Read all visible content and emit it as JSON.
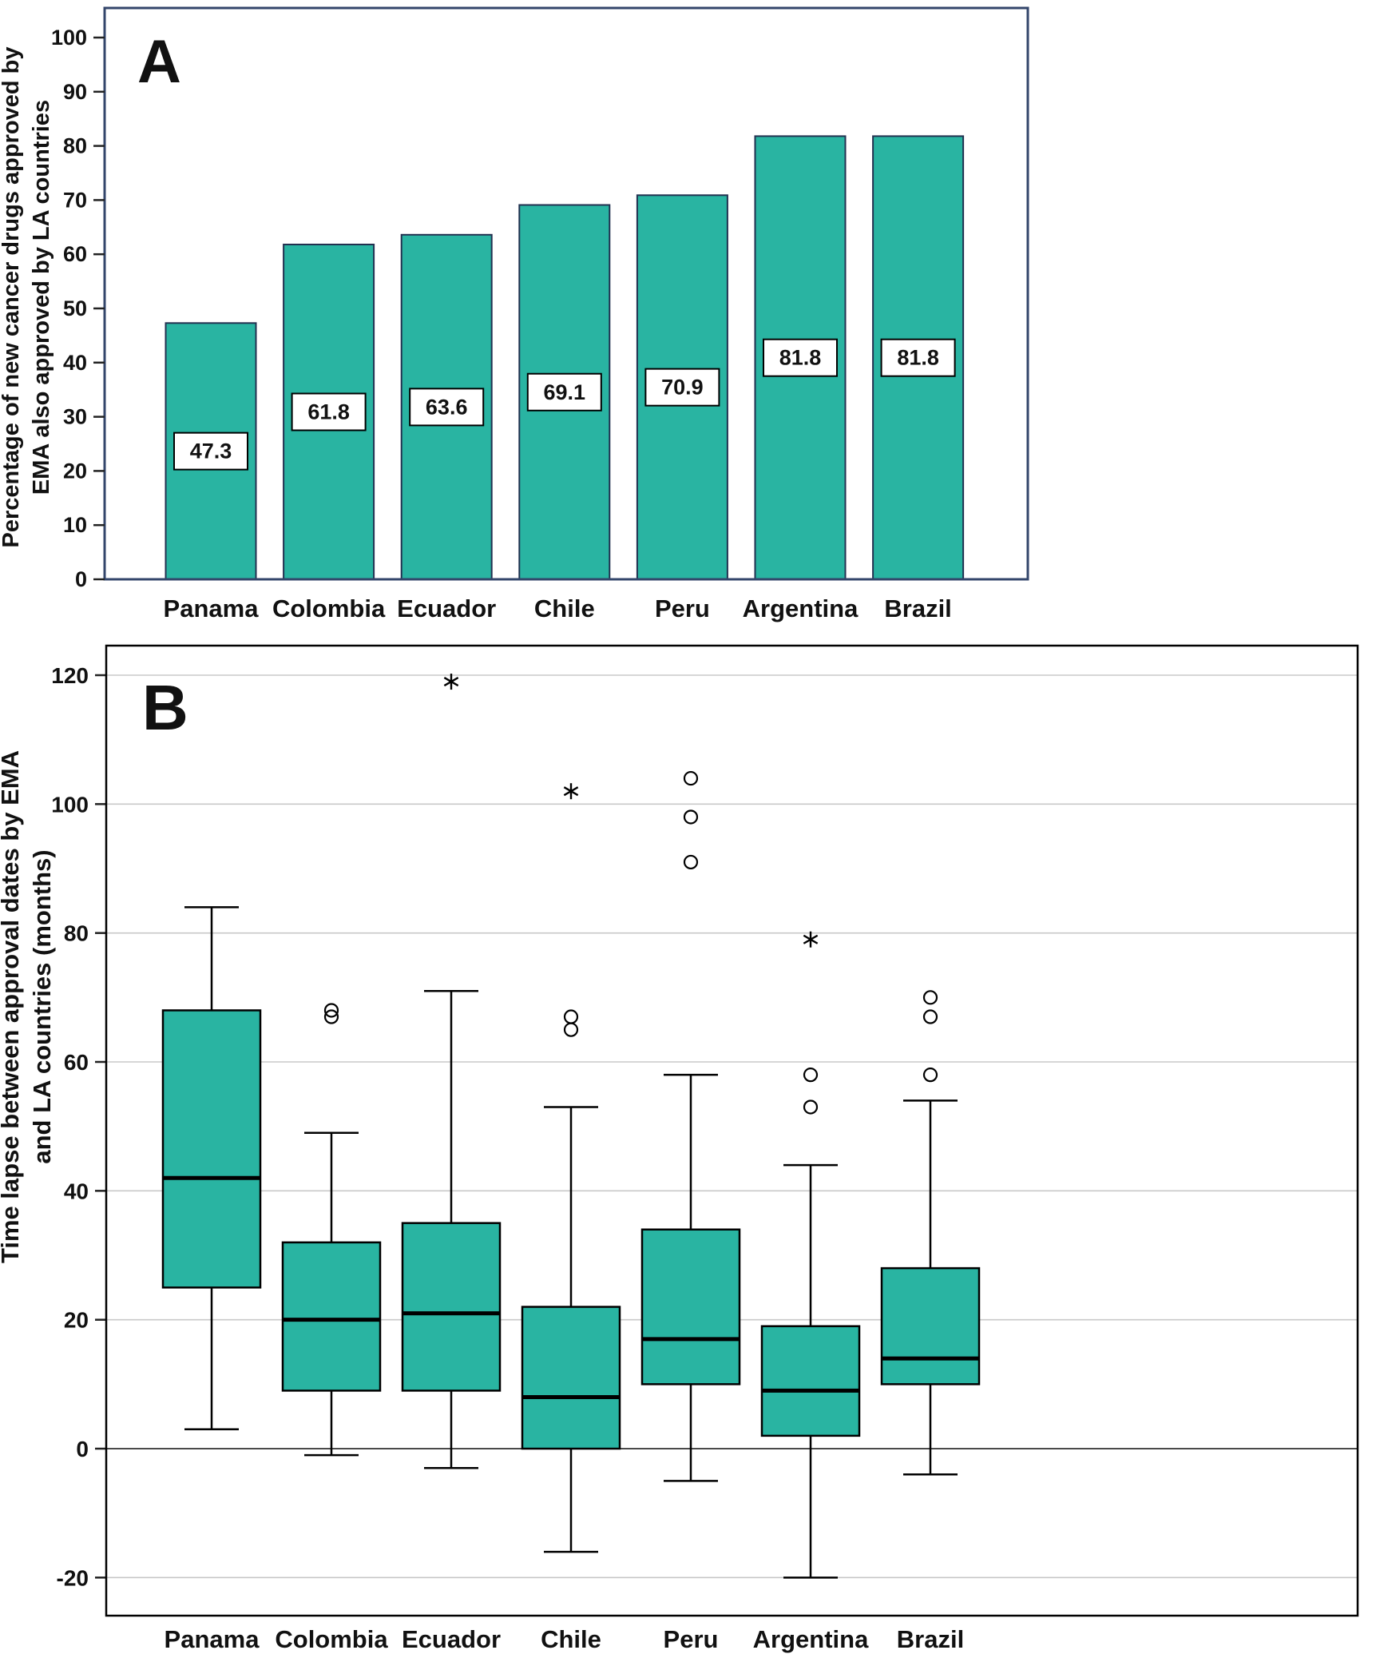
{
  "panels": {
    "a": {
      "letter": "A",
      "ylabel_line1": "Percentage of new cancer drugs approved by",
      "ylabel_line2": "EMA also approved by LA countries"
    },
    "b": {
      "letter": "B",
      "ylabel_line1": "Time lapse between approval dates by EMA",
      "ylabel_line2": "and LA countries (months)"
    }
  },
  "chart_data": [
    {
      "type": "bar",
      "panel": "A",
      "title": "",
      "ylabel": "Percentage of new cancer drugs approved by EMA also approved by LA countries",
      "xlabel": "",
      "categories": [
        "Panama",
        "Colombia",
        "Ecuador",
        "Chile",
        "Peru",
        "Argentina",
        "Brazil"
      ],
      "values": [
        47.3,
        61.8,
        63.6,
        69.1,
        70.9,
        81.8,
        81.8
      ],
      "value_labels": [
        "47.3",
        "61.8",
        "63.6",
        "69.1",
        "70.9",
        "81.8",
        "81.8"
      ],
      "ylim": [
        0,
        100
      ],
      "yticks": [
        0,
        10,
        20,
        30,
        40,
        50,
        60,
        70,
        80,
        90,
        100
      ],
      "grid": false,
      "legend": "none",
      "bar_color": "#29b4a2",
      "bar_border_color": "#223150",
      "frame_color": "#33466b",
      "value_label_box_fill": "#ffffff",
      "value_label_box_border": "#000000"
    },
    {
      "type": "boxplot",
      "panel": "B",
      "title": "",
      "ylabel": "Time lapse between approval dates by EMA and LA countries (months)",
      "xlabel": "",
      "categories": [
        "Panama",
        "Colombia",
        "Ecuador",
        "Chile",
        "Peru",
        "Argentina",
        "Brazil"
      ],
      "series": [
        {
          "name": "Panama",
          "whisker_low": 3,
          "q1": 25,
          "median": 42,
          "q3": 68,
          "whisker_high": 84,
          "outliers": [],
          "extremes": []
        },
        {
          "name": "Colombia",
          "whisker_low": -1,
          "q1": 9,
          "median": 20,
          "q3": 32,
          "whisker_high": 49,
          "outliers": [
            67,
            68
          ],
          "extremes": []
        },
        {
          "name": "Ecuador",
          "whisker_low": -3,
          "q1": 9,
          "median": 21,
          "q3": 35,
          "whisker_high": 71,
          "outliers": [],
          "extremes": [
            119
          ]
        },
        {
          "name": "Chile",
          "whisker_low": -16,
          "q1": 0,
          "median": 8,
          "q3": 22,
          "whisker_high": 53,
          "outliers": [
            65,
            67
          ],
          "extremes": [
            102
          ]
        },
        {
          "name": "Peru",
          "whisker_low": -5,
          "q1": 10,
          "median": 17,
          "q3": 34,
          "whisker_high": 58,
          "outliers": [
            91,
            98,
            104
          ],
          "extremes": []
        },
        {
          "name": "Argentina",
          "whisker_low": -20,
          "q1": 2,
          "median": 9,
          "q3": 19,
          "whisker_high": 44,
          "outliers": [
            53,
            58
          ],
          "extremes": [
            79
          ]
        },
        {
          "name": "Brazil",
          "whisker_low": -4,
          "q1": 10,
          "median": 14,
          "q3": 28,
          "whisker_high": 54,
          "outliers": [
            58,
            67,
            70
          ],
          "extremes": []
        }
      ],
      "ylim": [
        -28,
        126
      ],
      "yticks": [
        -20,
        0,
        20,
        40,
        60,
        80,
        100,
        120
      ],
      "grid": true,
      "legend": "none",
      "box_color": "#29b4a2",
      "box_border_color": "#000000",
      "gridline_color": "#c8c8c8",
      "zero_line_color": "#4a4a4a",
      "outlier_marker": "circle",
      "extreme_marker": "asterisk"
    }
  ]
}
